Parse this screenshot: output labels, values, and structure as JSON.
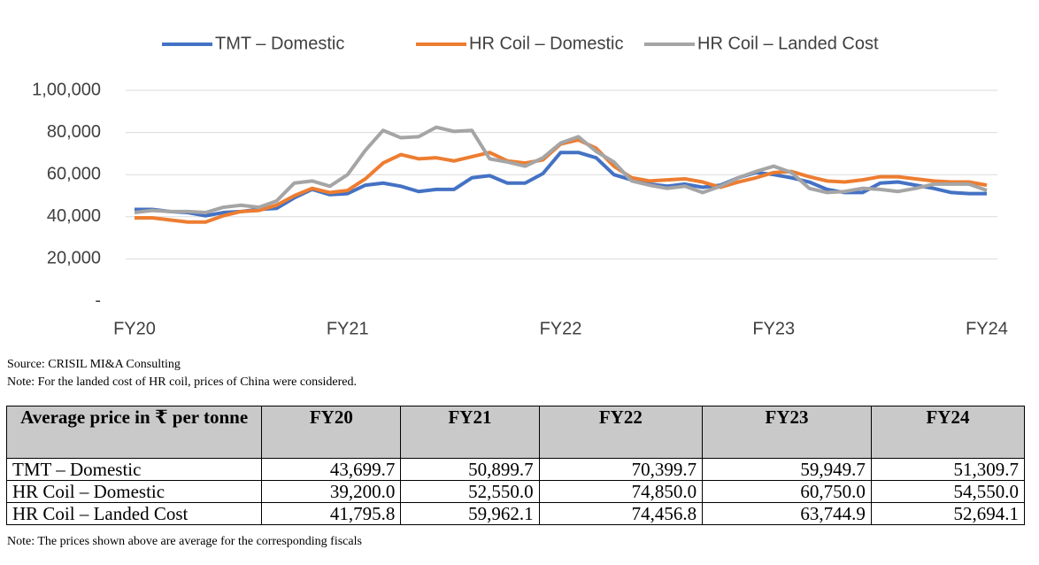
{
  "chart_data": {
    "type": "line",
    "categories": [
      "FY20",
      null,
      null,
      null,
      null,
      null,
      null,
      null,
      null,
      null,
      null,
      null,
      "FY21",
      null,
      null,
      null,
      null,
      null,
      null,
      null,
      null,
      null,
      null,
      null,
      "FY22",
      null,
      null,
      null,
      null,
      null,
      null,
      null,
      null,
      null,
      null,
      null,
      "FY23",
      null,
      null,
      null,
      null,
      null,
      null,
      null,
      null,
      null,
      null,
      null,
      "FY24"
    ],
    "series": [
      {
        "name": "TMT – Domestic",
        "color": "#4472c4",
        "values": [
          43500,
          43500,
          42500,
          42000,
          40500,
          42000,
          42500,
          43500,
          44000,
          49000,
          53000,
          50500,
          51000,
          55000,
          56000,
          54500,
          52000,
          53000,
          53000,
          58500,
          59500,
          56000,
          56000,
          60500,
          70500,
          70500,
          68000,
          60000,
          57500,
          55500,
          54500,
          55500,
          54000,
          55000,
          58500,
          61000,
          60000,
          58500,
          56500,
          53000,
          51500,
          51500,
          56000,
          56500,
          55000,
          53500,
          51500,
          51000,
          51000
        ]
      },
      {
        "name": "HR Coil – Domestic",
        "color": "#ed7d31",
        "values": [
          39500,
          39500,
          38500,
          37500,
          37500,
          40500,
          42500,
          43000,
          45500,
          50000,
          53500,
          51500,
          52500,
          58000,
          65500,
          69500,
          67500,
          68000,
          66500,
          68500,
          70500,
          66500,
          65500,
          67000,
          74500,
          76500,
          72500,
          64000,
          58500,
          57000,
          57500,
          58000,
          56500,
          54000,
          56500,
          58500,
          61000,
          61500,
          59000,
          57000,
          56500,
          57500,
          59000,
          59000,
          58000,
          57000,
          56500,
          56500,
          55000
        ]
      },
      {
        "name": "HR Coil – Landed Cost",
        "color": "#a5a5a5",
        "values": [
          42000,
          43000,
          42500,
          42500,
          42000,
          44500,
          45500,
          44500,
          47500,
          56000,
          57000,
          54500,
          60000,
          71500,
          81000,
          77500,
          78000,
          82500,
          80500,
          81000,
          67500,
          66000,
          64000,
          68000,
          75000,
          78000,
          71000,
          66000,
          57000,
          55000,
          53500,
          54500,
          51500,
          54500,
          58500,
          61500,
          64000,
          61000,
          53500,
          51500,
          52000,
          53500,
          53000,
          52000,
          53500,
          55500,
          55500,
          55500,
          52500
        ]
      }
    ],
    "ylim": [
      0,
      100000
    ],
    "yticks": [
      {
        "value": 0,
        "label": "-"
      },
      {
        "value": 20000,
        "label": "20,000"
      },
      {
        "value": 40000,
        "label": "40,000"
      },
      {
        "value": 60000,
        "label": "60,000"
      },
      {
        "value": 80000,
        "label": "80,000"
      },
      {
        "value": 100000,
        "label": "1,00,000"
      }
    ],
    "grid": true,
    "legend": "top"
  },
  "source": "Source: CRISIL MI&A Consulting",
  "note": "Note: For the landed cost of HR coil, prices of China were considered.",
  "table": {
    "header": [
      "Average price in ₹ per tonne",
      "FY20",
      "FY21",
      "FY22",
      "FY23",
      "FY24"
    ],
    "rows": [
      [
        "TMT – Domestic",
        "43,699.7",
        "50,899.7",
        "70,399.7",
        "59,949.7",
        "51,309.7"
      ],
      [
        "HR Coil – Domestic",
        "39,200.0",
        "52,550.0",
        "74,850.0",
        "60,750.0",
        "54,550.0"
      ],
      [
        "HR Coil – Landed Cost",
        "41,795.8",
        "59,962.1",
        "74,456.8",
        "63,744.9",
        "52,694.1"
      ]
    ]
  },
  "table_note": "Note: The prices shown above are average for the corresponding fiscals"
}
